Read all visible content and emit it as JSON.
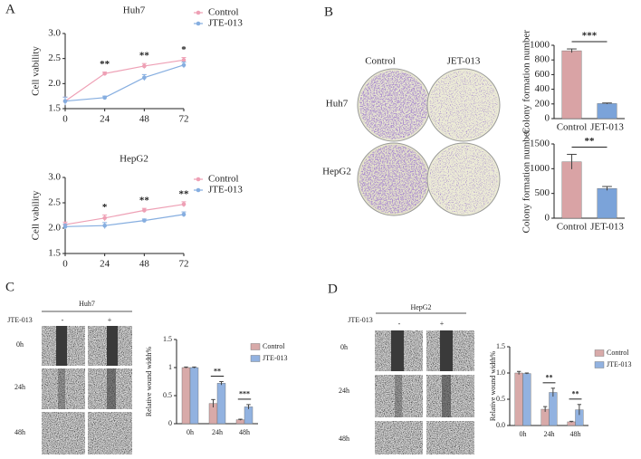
{
  "chart_data": [
    {
      "type": "line",
      "title": "Huh7",
      "ylabel": "Cell vability",
      "x": [
        0,
        24,
        48,
        72
      ],
      "xlim": [
        0,
        72
      ],
      "xticks": [
        0,
        24,
        48,
        72
      ],
      "ylim": [
        1.5,
        3.0
      ],
      "yticks": [
        1.5,
        {
          "value": 2.0,
          "label": "2.0"
        },
        2.5,
        {
          "value": 3.0,
          "label": "3.0"
        }
      ],
      "series": [
        {
          "name": "Control",
          "color": "#eea0b5",
          "values": [
            1.65,
            2.2,
            2.35,
            2.47
          ],
          "errors": [
            0.08,
            0.03,
            0.05,
            0.05
          ]
        },
        {
          "name": "JTE-013",
          "color": "#86aee0",
          "values": [
            1.65,
            1.72,
            2.12,
            2.37
          ],
          "errors": [
            0.08,
            0.03,
            0.06,
            0.06
          ]
        }
      ],
      "annotations": [
        "**",
        "**",
        "*"
      ]
    },
    {
      "type": "line",
      "title": "HepG2",
      "ylabel": "Cell vability",
      "x": [
        0,
        24,
        48,
        72
      ],
      "xlim": [
        0,
        72
      ],
      "xticks": [
        0,
        24,
        48,
        72
      ],
      "ylim": [
        1.5,
        3.0
      ],
      "yticks": [
        1.5,
        {
          "value": 2.0,
          "label": "2.0"
        },
        2.5,
        {
          "value": 3.0,
          "label": "3.0"
        }
      ],
      "series": [
        {
          "name": "Control",
          "color": "#eea0b5",
          "values": [
            2.07,
            2.2,
            2.35,
            2.47
          ],
          "errors": [
            0.05,
            0.06,
            0.04,
            0.05
          ]
        },
        {
          "name": "JTE-013",
          "color": "#86aee0",
          "values": [
            2.03,
            2.05,
            2.15,
            2.27
          ],
          "errors": [
            0.05,
            0.06,
            0.03,
            0.05
          ]
        }
      ],
      "annotations": [
        "*",
        "**",
        "**"
      ]
    },
    {
      "type": "bar",
      "ylabel": "Colony formation number",
      "categories": [
        "Control",
        "JET-013"
      ],
      "values": [
        925,
        205
      ],
      "errors": [
        25,
        8
      ],
      "colors": [
        "#d9a3a5",
        "#7ba3d9"
      ],
      "ylim": [
        0,
        1000
      ],
      "yticks": [
        0,
        200,
        400,
        600,
        800,
        1000
      ],
      "annotations": [
        "***"
      ]
    },
    {
      "type": "bar",
      "ylabel": "Colony formation number",
      "categories": [
        "Control",
        "JET-013"
      ],
      "values": [
        1140,
        600
      ],
      "errors": [
        150,
        40
      ],
      "colors": [
        "#d9a3a5",
        "#7ba3d9"
      ],
      "ylim": [
        0,
        1500
      ],
      "yticks": [
        0,
        500,
        1000,
        1500
      ],
      "annotations": [
        "**"
      ]
    },
    {
      "type": "bar",
      "ylabel": "Relative wound width%",
      "categories": [
        "0h",
        "24h",
        "48h"
      ],
      "ylim": [
        0,
        1.5
      ],
      "yticks": [
        0,
        0.5,
        1,
        1.5
      ],
      "series": [
        {
          "name": "Control",
          "color": "#d8aaa9",
          "values": [
            1.0,
            0.36,
            0.07
          ],
          "errors": [
            0.01,
            0.07,
            0.01
          ]
        },
        {
          "name": "JTE-013",
          "color": "#92b2e0",
          "values": [
            1.0,
            0.72,
            0.3
          ],
          "errors": [
            0.01,
            0.03,
            0.04
          ]
        }
      ],
      "annotations": [
        "**",
        "***"
      ]
    },
    {
      "type": "bar",
      "ylabel": "Relative wound width%",
      "categories": [
        "0h",
        "24h",
        "48h"
      ],
      "ylim": [
        0,
        1.5
      ],
      "yticks": [
        {
          "value": 0,
          "label": "0.0"
        },
        0.5,
        {
          "value": 1,
          "label": "1.0"
        },
        1.5
      ],
      "series": [
        {
          "name": "Control",
          "color": "#d8aaa9",
          "values": [
            1.0,
            0.31,
            0.07
          ],
          "errors": [
            0.03,
            0.05,
            0.01
          ]
        },
        {
          "name": "JTE-013",
          "color": "#92b2e0",
          "values": [
            0.99,
            0.63,
            0.3
          ],
          "errors": [
            0.01,
            0.08,
            0.1
          ]
        }
      ],
      "annotations": [
        "**",
        "**"
      ]
    }
  ],
  "figure": {
    "panels": [
      "A",
      "B",
      "C",
      "D"
    ],
    "colony": {
      "columns": [
        "Control",
        "JET-013"
      ],
      "rows": [
        "Huh7",
        "HepG2"
      ]
    },
    "wound_c": {
      "title": "Huh7",
      "treatment": "JTE-013",
      "levels": [
        "-",
        "+"
      ],
      "rows": [
        "0h",
        "24h",
        "48h"
      ]
    },
    "wound_d": {
      "title": "HepG2",
      "treatment": "JTE-013",
      "levels": [
        "-",
        "+"
      ],
      "rows": [
        "0h",
        "24h",
        "48h"
      ]
    }
  }
}
